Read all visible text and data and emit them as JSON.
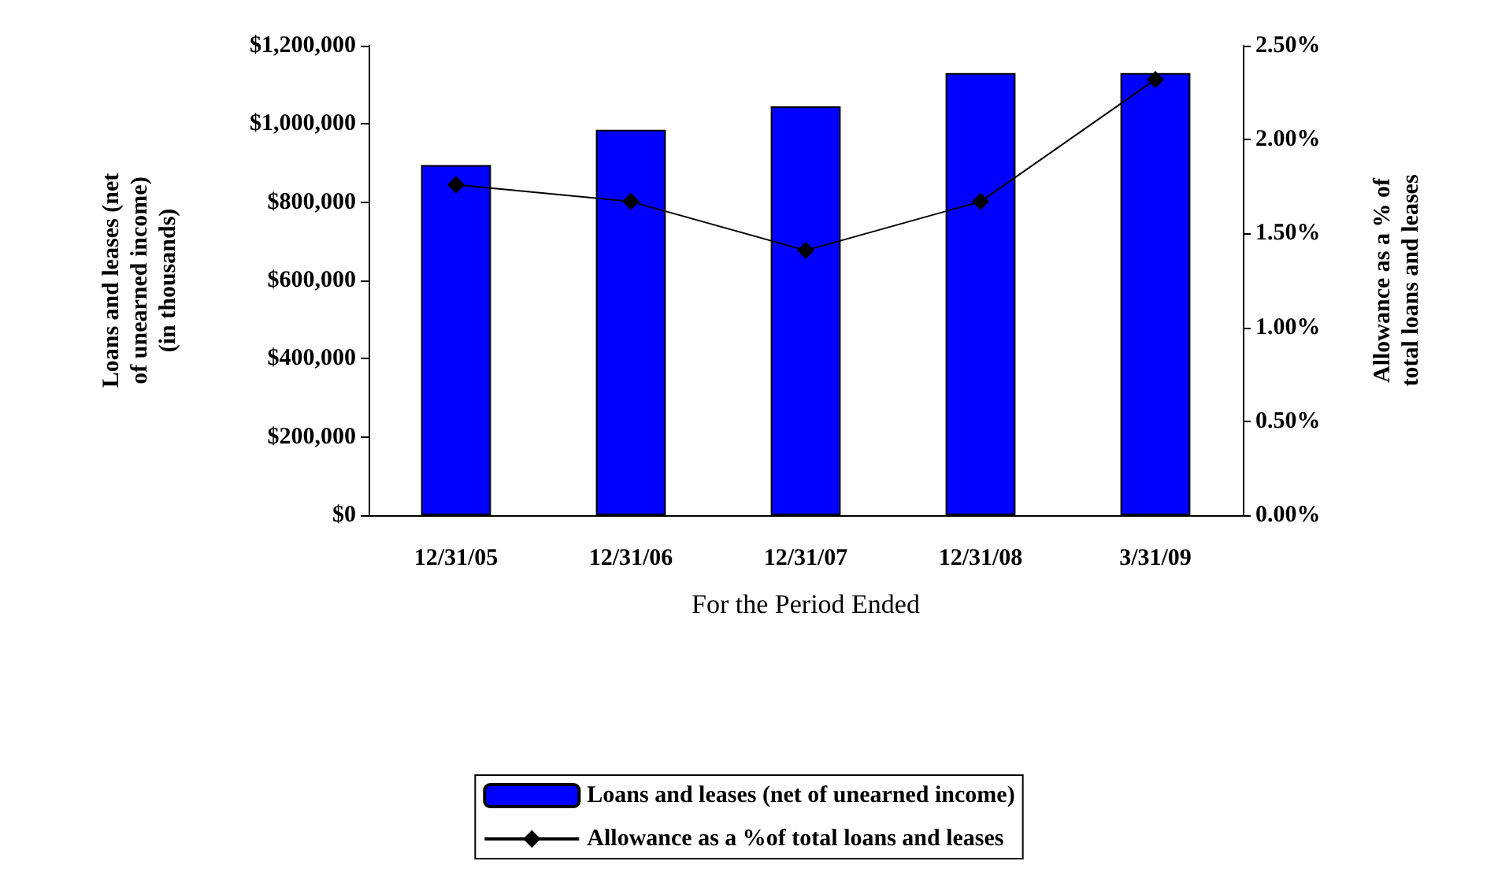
{
  "chart_data": {
    "type": "bar",
    "categories": [
      "12/31/05",
      "12/31/06",
      "12/31/07",
      "12/31/08",
      "3/31/09"
    ],
    "xlabel": "For the Period Ended",
    "ylabel": "Loans and leases (net of unearned income) (in thousands)",
    "y2label": "Allowance as a % of total loans and leases",
    "series": [
      {
        "name": "Loans and leases (net of unearned income)",
        "color": "#0000ff",
        "values": [
          895000,
          985000,
          1045000,
          1130000,
          1130000
        ]
      },
      {
        "name": "Allowance as a %of total loans and leases",
        "type": "line",
        "axis": "y2",
        "color": "#000000",
        "marker": "diamond",
        "values": [
          1.76,
          1.67,
          1.41,
          1.67,
          2.32
        ]
      }
    ],
    "ylim": [
      0,
      1200000
    ],
    "yticks": [
      {
        "value": 0,
        "label": "$0"
      },
      {
        "value": 200000,
        "label": "$200,000"
      },
      {
        "value": 400000,
        "label": "$400,000"
      },
      {
        "value": 600000,
        "label": "$600,000"
      },
      {
        "value": 800000,
        "label": "$800,000"
      },
      {
        "value": 1000000,
        "label": "$1,000,000"
      },
      {
        "value": 1200000,
        "label": "$1,200,000"
      }
    ],
    "y2lim": [
      0,
      2.5
    ],
    "y2ticks": [
      {
        "value": 0,
        "label": "0.00%"
      },
      {
        "value": 0.5,
        "label": "0.50%"
      },
      {
        "value": 1,
        "label": "1.00%"
      },
      {
        "value": 1.5,
        "label": "1.50%"
      },
      {
        "value": 2,
        "label": "2.00%"
      },
      {
        "value": 2.5,
        "label": "2.50%"
      }
    ],
    "grid": false,
    "legend": "bottom"
  }
}
